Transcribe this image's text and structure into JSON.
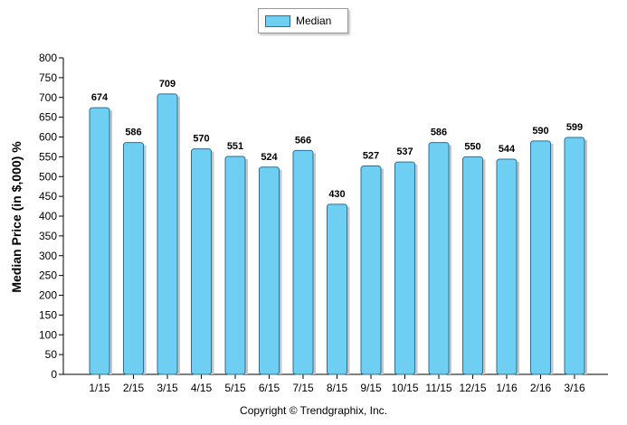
{
  "chart_data": {
    "type": "bar",
    "title": "",
    "xlabel": "",
    "ylabel": "Median Price (in $,000) %",
    "ylim": [
      0,
      800
    ],
    "yticks": [
      0,
      50,
      100,
      150,
      200,
      250,
      300,
      350,
      400,
      450,
      500,
      550,
      600,
      650,
      700,
      750,
      800
    ],
    "grid": false,
    "legend_position": "top-center",
    "categories": [
      "1/15",
      "2/15",
      "3/15",
      "4/15",
      "5/15",
      "6/15",
      "7/15",
      "8/15",
      "9/15",
      "10/15",
      "11/15",
      "12/15",
      "1/16",
      "2/16",
      "3/16"
    ],
    "series": [
      {
        "name": "Median",
        "color": "#6fcff3",
        "values": [
          674,
          586,
          709,
          570,
          551,
          524,
          566,
          430,
          527,
          537,
          586,
          550,
          544,
          590,
          599
        ],
        "labels": [
          "674",
          "586",
          "709",
          "570",
          "551",
          "524",
          "566",
          "430",
          "527",
          "537",
          "586",
          "550",
          "544",
          "590",
          "599"
        ]
      }
    ]
  },
  "footer": {
    "copyright": "Copyright © Trendgraphix, Inc."
  },
  "colors": {
    "bar_fill": "#6fcff3",
    "bar_stroke": "#2a6f96",
    "axis": "#000000"
  }
}
